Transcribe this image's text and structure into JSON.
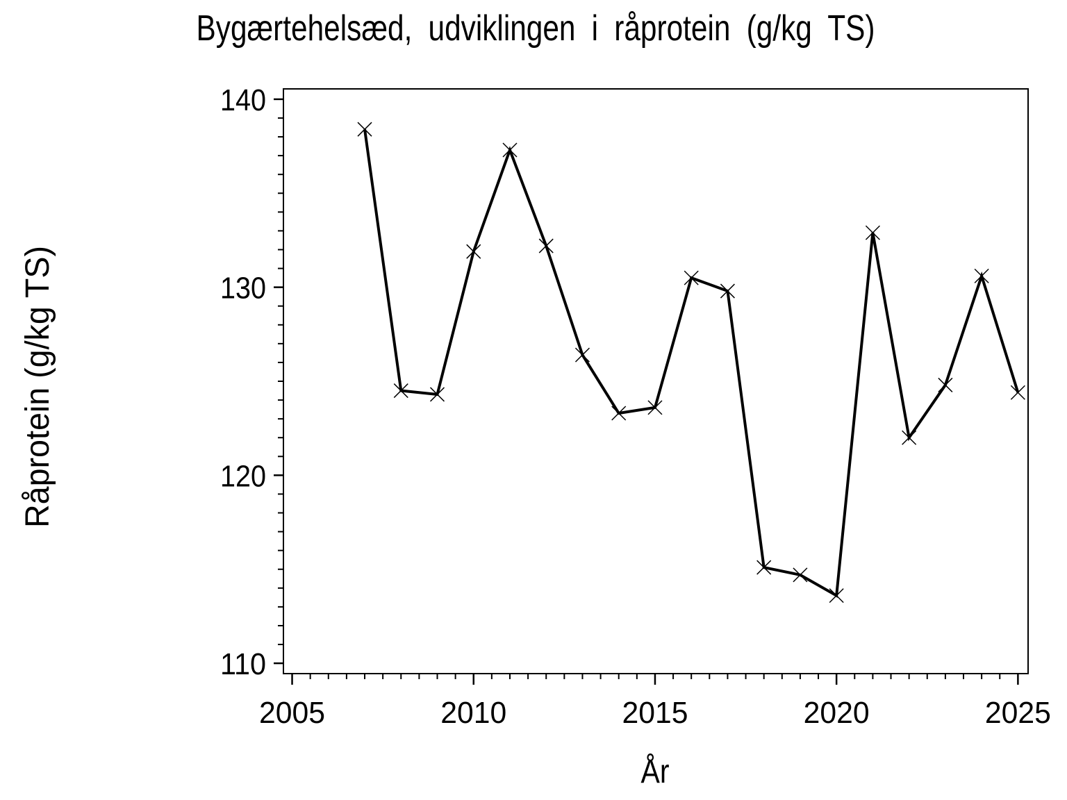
{
  "chart_data": {
    "type": "line",
    "title": "Bygærtehelsæd, udviklingen i råprotein (g/kg TS)",
    "xlabel": "År",
    "ylabel": "Råprotein (g/kg TS)",
    "x": [
      2007,
      2008,
      2009,
      2010,
      2011,
      2012,
      2013,
      2014,
      2015,
      2016,
      2017,
      2018,
      2019,
      2020,
      2021,
      2022,
      2023,
      2024,
      2025
    ],
    "values": [
      138.4,
      124.5,
      124.3,
      131.9,
      137.3,
      132.2,
      126.4,
      123.3,
      123.6,
      130.5,
      129.8,
      115.1,
      114.7,
      113.6,
      132.9,
      122.0,
      124.8,
      130.6,
      124.4
    ],
    "series": [
      {
        "name": "Råprotein",
        "values": [
          138.4,
          124.5,
          124.3,
          131.9,
          137.3,
          132.2,
          126.4,
          123.3,
          123.6,
          130.5,
          129.8,
          115.1,
          114.7,
          113.6,
          132.9,
          122.0,
          124.8,
          130.6,
          124.4
        ]
      }
    ],
    "xlim": [
      2004.76,
      2025.28
    ],
    "ylim": [
      109.45,
      140.55
    ],
    "x_major_ticks": [
      2005,
      2010,
      2015,
      2020,
      2025
    ],
    "x_minor_step": 0.5,
    "y_major_ticks": [
      110,
      120,
      130,
      140
    ],
    "y_minor_step": 1,
    "marker": "x",
    "line_color": "#000000",
    "background_color": "#ffffff",
    "grid": false,
    "legend": "none"
  }
}
